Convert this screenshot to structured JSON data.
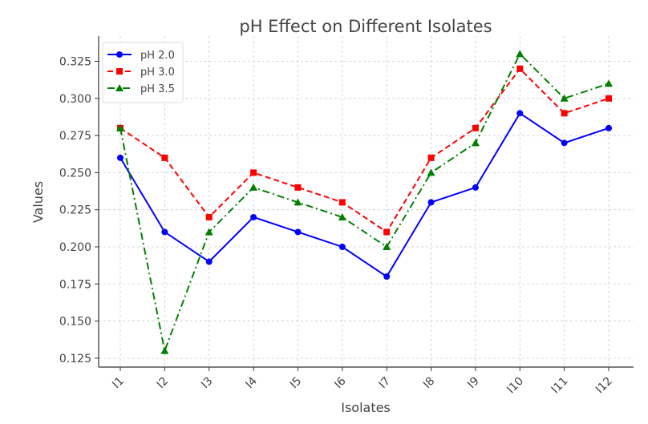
{
  "chart_data": {
    "type": "line",
    "title": "pH Effect on Different Isolates",
    "xlabel": "Isolates",
    "ylabel": "Values",
    "categories": [
      "I1",
      "I2",
      "I3",
      "I4",
      "I5",
      "I6",
      "I7",
      "I8",
      "I9",
      "I10",
      "I11",
      "I12"
    ],
    "ylim": [
      0.119,
      0.342
    ],
    "yticks": [
      "0.125",
      "0.150",
      "0.175",
      "0.200",
      "0.225",
      "0.250",
      "0.275",
      "0.300",
      "0.325"
    ],
    "grid": true,
    "legend_position": "top-left",
    "series": [
      {
        "name": "pH 2.0",
        "color": "#0000ff",
        "marker": "circle",
        "dash": "solid",
        "values": [
          0.26,
          0.21,
          0.19,
          0.22,
          0.21,
          0.2,
          0.18,
          0.23,
          0.24,
          0.29,
          0.27,
          0.28
        ]
      },
      {
        "name": "pH 3.0",
        "color": "#ff0000",
        "marker": "square",
        "dash": "dashed",
        "values": [
          0.28,
          0.26,
          0.22,
          0.25,
          0.24,
          0.23,
          0.21,
          0.26,
          0.28,
          0.32,
          0.29,
          0.3
        ]
      },
      {
        "name": "pH 3.5",
        "color": "#008000",
        "marker": "triangle",
        "dash": "dashdot",
        "values": [
          0.28,
          0.13,
          0.21,
          0.24,
          0.23,
          0.22,
          0.2,
          0.25,
          0.27,
          0.33,
          0.3,
          0.31
        ]
      }
    ]
  }
}
